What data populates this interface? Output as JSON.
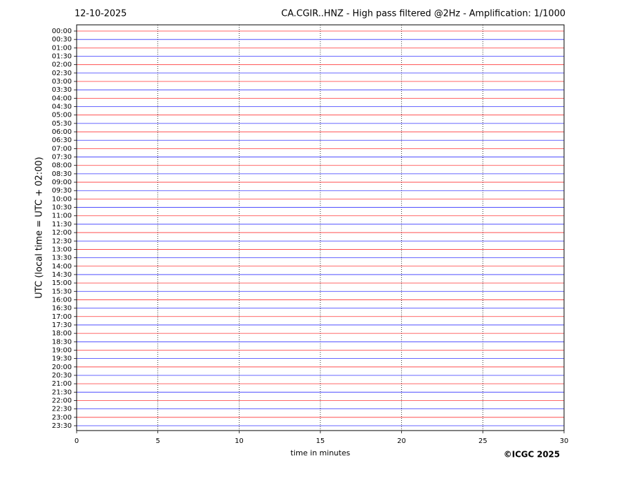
{
  "chart_data": {
    "type": "helicorder",
    "date": "12-10-2025",
    "title": "CA.CGIR..HNZ - High pass filtered @2Hz - Amplification: 1/1000",
    "ylabel": "UTC (local time = UTC + 02:00)",
    "xlabel": "time in minutes",
    "credit": "©ICGC 2025",
    "categories": [
      "00:00",
      "00:30",
      "01:00",
      "01:30",
      "02:00",
      "02:30",
      "03:00",
      "03:30",
      "04:00",
      "04:30",
      "05:00",
      "05:30",
      "06:00",
      "06:30",
      "07:00",
      "07:30",
      "08:00",
      "08:30",
      "09:00",
      "09:30",
      "10:00",
      "10:30",
      "11:00",
      "11:30",
      "12:00",
      "12:30",
      "13:00",
      "13:30",
      "14:00",
      "14:30",
      "15:00",
      "15:30",
      "16:00",
      "16:30",
      "17:00",
      "17:30",
      "18:00",
      "18:30",
      "19:00",
      "19:30",
      "20:00",
      "20:30",
      "21:00",
      "21:30",
      "22:00",
      "22:30",
      "23:00",
      "23:30"
    ],
    "colors": [
      "#ff0000",
      "#0000ff"
    ],
    "xlim": [
      0,
      30
    ],
    "xticks": [
      0,
      5,
      10,
      15,
      20,
      25,
      30
    ],
    "grid": true
  }
}
